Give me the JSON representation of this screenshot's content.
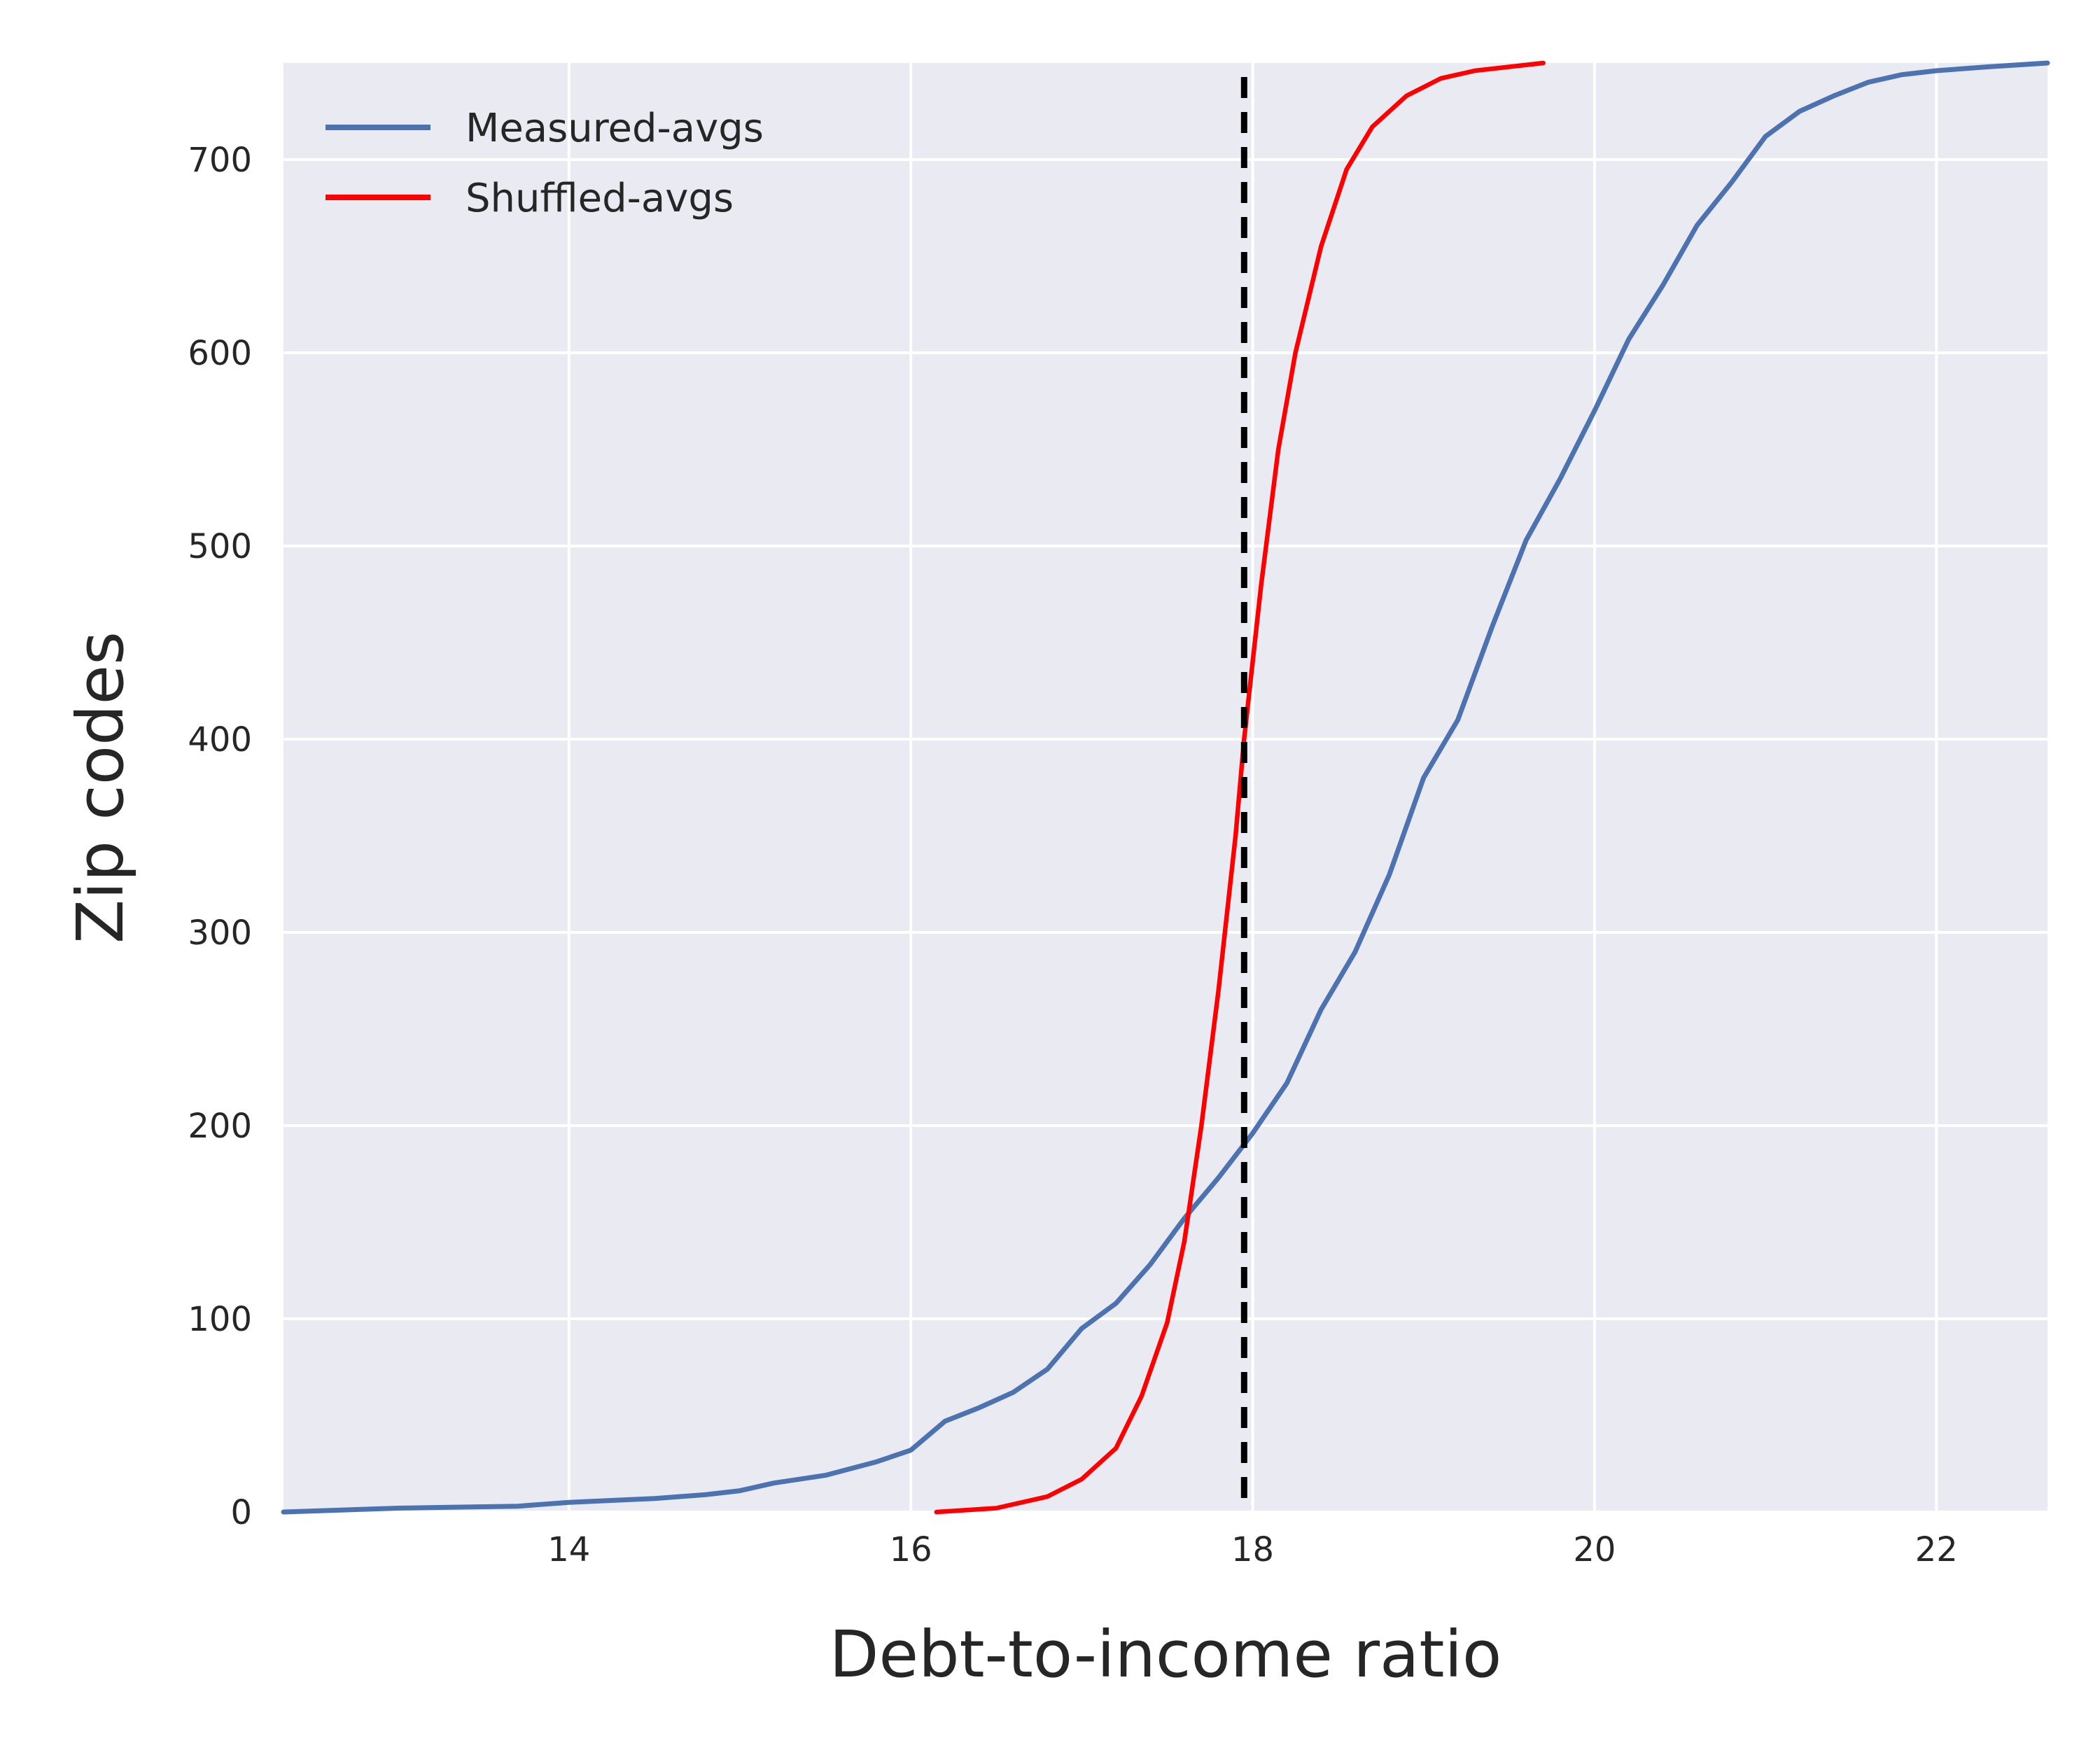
{
  "chart_data": {
    "type": "line",
    "title": "",
    "xlabel": "Debt-to-income ratio",
    "ylabel": "Zip codes",
    "xlim": [
      12.33,
      22.65
    ],
    "ylim": [
      0,
      750
    ],
    "xticks": [
      14,
      16,
      18,
      20,
      22
    ],
    "yticks": [
      0,
      100,
      200,
      300,
      400,
      500,
      600,
      700
    ],
    "grid": true,
    "legend_position": "top-left",
    "background_color": "#EAEAF2",
    "reference_line": {
      "x": 17.95,
      "style": "dashed",
      "color": "#000000"
    },
    "series": [
      {
        "name": "Measured-avgs",
        "color": "#4C72B0",
        "x": [
          12.33,
          13.0,
          13.7,
          14.0,
          14.5,
          14.8,
          15.0,
          15.2,
          15.5,
          15.8,
          16.0,
          16.2,
          16.4,
          16.6,
          16.8,
          17.0,
          17.2,
          17.4,
          17.6,
          17.8,
          18.0,
          18.2,
          18.4,
          18.6,
          18.8,
          19.0,
          19.2,
          19.4,
          19.6,
          19.8,
          20.0,
          20.2,
          20.4,
          20.6,
          20.8,
          21.0,
          21.2,
          21.4,
          21.6,
          21.8,
          22.0,
          22.3,
          22.65
        ],
        "values": [
          0,
          2,
          3,
          5,
          7,
          9,
          11,
          15,
          19,
          26,
          32,
          47,
          54,
          62,
          74,
          95,
          108,
          128,
          152,
          173,
          196,
          222,
          260,
          290,
          330,
          380,
          410,
          458,
          503,
          535,
          570,
          607,
          635,
          666,
          688,
          712,
          725,
          733,
          740,
          744,
          746,
          748,
          750
        ]
      },
      {
        "name": "Shuffled-avgs",
        "color": "#FF0000",
        "x": [
          16.15,
          16.5,
          16.8,
          17.0,
          17.2,
          17.35,
          17.5,
          17.6,
          17.7,
          17.8,
          17.9,
          17.95,
          18.05,
          18.15,
          18.25,
          18.4,
          18.55,
          18.7,
          18.9,
          19.1,
          19.3,
          19.5,
          19.7
        ],
        "values": [
          0,
          2,
          8,
          17,
          33,
          60,
          98,
          140,
          200,
          270,
          350,
          400,
          480,
          550,
          600,
          655,
          695,
          717,
          733,
          742,
          746,
          748,
          750
        ]
      }
    ]
  }
}
